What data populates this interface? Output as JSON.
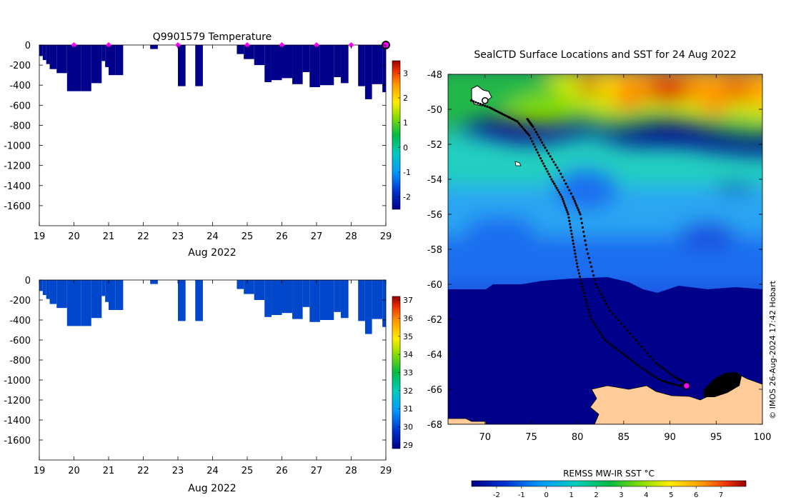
{
  "chart_data": [
    {
      "type": "heatmap",
      "title": "Q9901579  Temperature",
      "xlabel": "Aug 2022",
      "ylabel": "",
      "xlim": [
        19,
        29
      ],
      "ylim": [
        -1800,
        0
      ],
      "x_ticks": [
        19,
        20,
        21,
        22,
        23,
        24,
        25,
        26,
        27,
        28,
        29
      ],
      "y_ticks": [
        0,
        -200,
        -400,
        -600,
        -800,
        -1000,
        -1200,
        -1400,
        -1600
      ],
      "colorbar": {
        "min": -2.5,
        "max": 3.5,
        "ticks": [
          3,
          2,
          1,
          0,
          -1,
          -2
        ]
      },
      "profile_depths": [
        [
          19.0,
          -110
        ],
        [
          19.1,
          -150
        ],
        [
          19.2,
          -190
        ],
        [
          19.3,
          -240
        ],
        [
          19.5,
          -280
        ],
        [
          19.8,
          -460
        ],
        [
          20.2,
          -460
        ],
        [
          20.5,
          -380
        ],
        [
          20.8,
          -160
        ],
        [
          20.9,
          -220
        ],
        [
          21.0,
          -300
        ],
        [
          21.2,
          -300
        ],
        [
          22.2,
          -40
        ],
        [
          23.0,
          -410
        ],
        [
          23.5,
          -410
        ],
        [
          24.7,
          -90
        ],
        [
          24.9,
          -140
        ],
        [
          25.2,
          -200
        ],
        [
          25.5,
          -370
        ],
        [
          25.7,
          -350
        ],
        [
          26.0,
          -330
        ],
        [
          26.3,
          -390
        ],
        [
          26.6,
          -270
        ],
        [
          26.8,
          -420
        ],
        [
          27.1,
          -400
        ],
        [
          27.5,
          -320
        ],
        [
          27.7,
          -380
        ],
        [
          28.2,
          -410
        ],
        [
          28.4,
          -540
        ],
        [
          28.6,
          -390
        ],
        [
          28.9,
          -470
        ]
      ],
      "surface_markers": [
        20,
        21,
        23,
        25,
        26,
        27,
        28,
        29
      ]
    },
    {
      "type": "heatmap",
      "title": "",
      "xlabel": "Aug 2022",
      "ylabel": "",
      "xlim": [
        19,
        29
      ],
      "ylim": [
        -1800,
        0
      ],
      "x_ticks": [
        19,
        20,
        21,
        22,
        23,
        24,
        25,
        26,
        27,
        28,
        29
      ],
      "y_ticks": [
        0,
        -200,
        -400,
        -600,
        -800,
        -1000,
        -1200,
        -1400,
        -1600
      ],
      "colorbar": {
        "min": 28.8,
        "max": 37.2,
        "ticks": [
          37,
          36,
          35,
          34,
          33,
          32,
          31,
          30,
          29
        ]
      }
    },
    {
      "type": "heatmap",
      "title": "SealCTD Surface Locations and SST for 24 Aug 2022",
      "xlabel": "",
      "ylabel": "",
      "xlim": [
        66,
        100
      ],
      "ylim": [
        -68,
        -48
      ],
      "x_ticks": [
        70,
        75,
        80,
        85,
        90,
        95,
        100
      ],
      "y_ticks": [
        -48,
        -50,
        -52,
        -54,
        -56,
        -58,
        -60,
        -62,
        -64,
        -66,
        -68
      ],
      "colorbar": {
        "label": "REMSS MW-IR SST °C",
        "min": -3,
        "max": 8,
        "ticks": [
          -2,
          -1,
          0,
          1,
          2,
          3,
          4,
          5,
          6,
          7
        ],
        "placement": "bottom"
      },
      "track": [
        [
          68.5,
          -49.5
        ],
        [
          70.5,
          -49.9
        ],
        [
          72.0,
          -50.3
        ],
        [
          73.5,
          -50.7
        ],
        [
          74.8,
          -51.5
        ],
        [
          76.0,
          -52.8
        ],
        [
          77.2,
          -54.0
        ],
        [
          78.3,
          -55.0
        ],
        [
          79.0,
          -56.0
        ],
        [
          79.5,
          -57.5
        ],
        [
          80.0,
          -59.0
        ],
        [
          80.7,
          -60.5
        ],
        [
          81.5,
          -62.0
        ],
        [
          83.0,
          -63.2
        ],
        [
          85.0,
          -64.0
        ],
        [
          87.0,
          -64.8
        ],
        [
          89.0,
          -65.5
        ],
        [
          91.0,
          -65.8
        ],
        [
          92.0,
          -65.7
        ],
        [
          90.5,
          -65.3
        ],
        [
          88.5,
          -64.5
        ],
        [
          86.0,
          -63.0
        ],
        [
          83.5,
          -61.5
        ],
        [
          82.0,
          -60.0
        ],
        [
          81.0,
          -58.0
        ],
        [
          80.3,
          -56.0
        ],
        [
          79.5,
          -55.0
        ],
        [
          78.0,
          -53.5
        ],
        [
          76.5,
          -52.2
        ],
        [
          75.2,
          -51.0
        ],
        [
          74.5,
          -50.5
        ]
      ],
      "current_position": [
        91.8,
        -65.8
      ],
      "start_position": [
        70.0,
        -49.5
      ]
    }
  ],
  "credit": "© IMOS 26-Aug-2024 17:42 Hobart"
}
